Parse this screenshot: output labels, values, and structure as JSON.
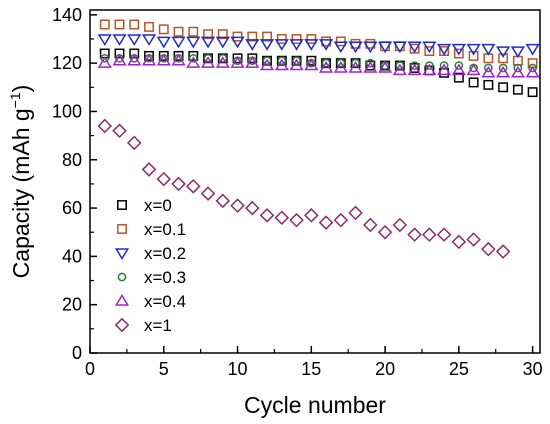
{
  "chart_data": {
    "type": "scatter",
    "xlabel": "Cycle number",
    "ylabel_main": "Capacity (mAh g",
    "ylabel_sup": "−1",
    "ylabel_end": ")",
    "xlim": [
      0,
      30.5
    ],
    "ylim": [
      0,
      142
    ],
    "xticks": [
      "0",
      "5",
      "10",
      "15",
      "20",
      "25",
      "30"
    ],
    "yticks": [
      "0",
      "20",
      "40",
      "60",
      "80",
      "100",
      "120",
      "140"
    ],
    "legend_position": "bottom-left",
    "series": [
      {
        "name": "x=0",
        "marker": "square",
        "color": "#000000",
        "x": [
          1,
          2,
          3,
          4,
          5,
          6,
          7,
          8,
          9,
          10,
          11,
          12,
          13,
          14,
          15,
          16,
          17,
          18,
          19,
          20,
          21,
          22,
          23,
          24,
          25,
          26,
          27,
          28,
          29,
          30
        ],
        "y": [
          124,
          124,
          124,
          123,
          123,
          123,
          123,
          122,
          122,
          122,
          122,
          121,
          121,
          121,
          121,
          120,
          120,
          120,
          119,
          119,
          119,
          118,
          117,
          116,
          114,
          112,
          111,
          110,
          109,
          108
        ]
      },
      {
        "name": "x=0.1",
        "marker": "square",
        "color": "#b5562a",
        "x": [
          1,
          2,
          3,
          4,
          5,
          6,
          7,
          8,
          9,
          10,
          11,
          12,
          13,
          14,
          15,
          16,
          17,
          18,
          19,
          20,
          21,
          22,
          23,
          24,
          25,
          26,
          27,
          28,
          29,
          30
        ],
        "y": [
          136,
          136,
          136,
          135,
          134,
          133,
          133,
          132,
          132,
          131,
          131,
          131,
          130,
          130,
          130,
          129,
          129,
          128,
          128,
          127,
          127,
          126,
          125,
          125,
          124,
          123,
          122,
          122,
          121,
          120
        ]
      },
      {
        "name": "x=0.2",
        "marker": "triangle-down",
        "color": "#1f2ac8",
        "x": [
          1,
          2,
          3,
          4,
          5,
          6,
          7,
          8,
          9,
          10,
          11,
          12,
          13,
          14,
          15,
          16,
          17,
          18,
          19,
          20,
          21,
          22,
          23,
          24,
          25,
          26,
          27,
          28,
          29,
          30
        ],
        "y": [
          130,
          130,
          130,
          130,
          129,
          129,
          129,
          129,
          129,
          129,
          128,
          128,
          128,
          128,
          128,
          128,
          127,
          127,
          127,
          127,
          127,
          127,
          127,
          126,
          126,
          126,
          126,
          125,
          125,
          126
        ]
      },
      {
        "name": "x=0.3",
        "marker": "circle",
        "color": "#2e7d32",
        "x": [
          1,
          2,
          3,
          4,
          5,
          6,
          7,
          8,
          9,
          10,
          11,
          12,
          13,
          14,
          15,
          16,
          17,
          18,
          19,
          20,
          21,
          22,
          23,
          24,
          25,
          26,
          27,
          28,
          29,
          30
        ],
        "y": [
          122,
          122,
          122,
          122,
          122,
          122,
          122,
          122,
          122,
          121,
          121,
          121,
          121,
          121,
          120,
          120,
          120,
          120,
          120,
          119,
          119,
          119,
          119,
          119,
          119,
          118,
          118,
          118,
          118,
          118
        ]
      },
      {
        "name": "x=0.4",
        "marker": "triangle-up",
        "color": "#a020d0",
        "x": [
          1,
          2,
          3,
          4,
          5,
          6,
          7,
          8,
          9,
          10,
          11,
          12,
          13,
          14,
          15,
          16,
          17,
          18,
          19,
          20,
          21,
          22,
          23,
          24,
          25,
          26,
          27,
          28,
          29,
          30
        ],
        "y": [
          120,
          121,
          121,
          121,
          121,
          121,
          120,
          120,
          120,
          120,
          120,
          119,
          119,
          119,
          119,
          118,
          118,
          118,
          118,
          118,
          117,
          117,
          117,
          117,
          117,
          117,
          116,
          116,
          116,
          116
        ]
      },
      {
        "name": "x=1",
        "marker": "diamond",
        "color": "#8b2a6e",
        "x": [
          1,
          2,
          3,
          4,
          5,
          6,
          7,
          8,
          9,
          10,
          11,
          12,
          13,
          14,
          15,
          16,
          17,
          18,
          19,
          20,
          21,
          22,
          23,
          24,
          25,
          26,
          27,
          28
        ],
        "y": [
          94,
          92,
          87,
          76,
          72,
          70,
          69,
          66,
          63,
          61,
          60,
          57,
          56,
          55,
          57,
          54,
          55,
          58,
          53,
          50,
          53,
          49,
          49,
          49,
          46,
          47,
          43,
          42
        ]
      }
    ]
  }
}
